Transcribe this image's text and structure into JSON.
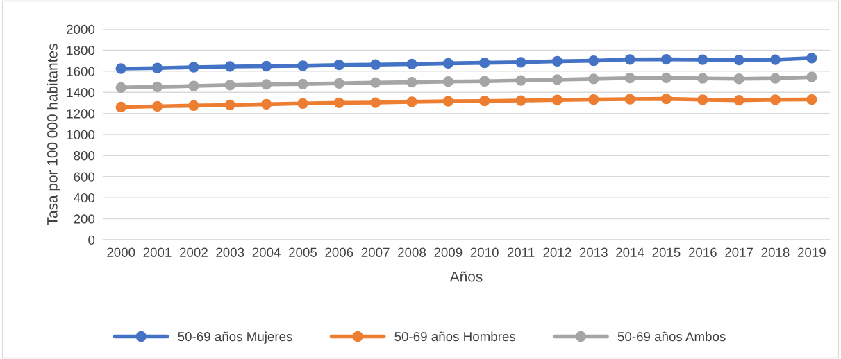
{
  "chart_data": {
    "type": "line",
    "xlabel": "Años",
    "ylabel": "Tasa por 100 000 habitantes",
    "categories": [
      "2000",
      "2001",
      "2002",
      "2003",
      "2004",
      "2005",
      "2006",
      "2007",
      "2008",
      "2009",
      "2010",
      "2011",
      "2012",
      "2013",
      "2014",
      "2015",
      "2016",
      "2017",
      "2018",
      "2019"
    ],
    "series": [
      {
        "name": "50-69 años Mujeres",
        "color": "#4472c4",
        "values": [
          1625,
          1630,
          1638,
          1645,
          1648,
          1652,
          1660,
          1663,
          1668,
          1675,
          1680,
          1685,
          1695,
          1700,
          1712,
          1713,
          1710,
          1706,
          1710,
          1725
        ]
      },
      {
        "name": "50-69 años Hombres",
        "color": "#ed7d31",
        "values": [
          1260,
          1267,
          1274,
          1280,
          1287,
          1294,
          1300,
          1302,
          1310,
          1315,
          1318,
          1322,
          1328,
          1332,
          1335,
          1338,
          1330,
          1325,
          1330,
          1332
        ]
      },
      {
        "name": "50-69 años Ambos",
        "color": "#a5a5a5",
        "values": [
          1445,
          1452,
          1460,
          1468,
          1475,
          1478,
          1485,
          1492,
          1496,
          1502,
          1505,
          1512,
          1520,
          1527,
          1535,
          1537,
          1532,
          1528,
          1532,
          1545
        ]
      }
    ],
    "ylim": [
      0,
      2000
    ],
    "yticks": [
      0,
      200,
      400,
      600,
      800,
      1000,
      1200,
      1400,
      1600,
      1800,
      2000
    ],
    "grid": "y",
    "legend": "bottom",
    "marker": "circle",
    "line_style": "solid"
  }
}
